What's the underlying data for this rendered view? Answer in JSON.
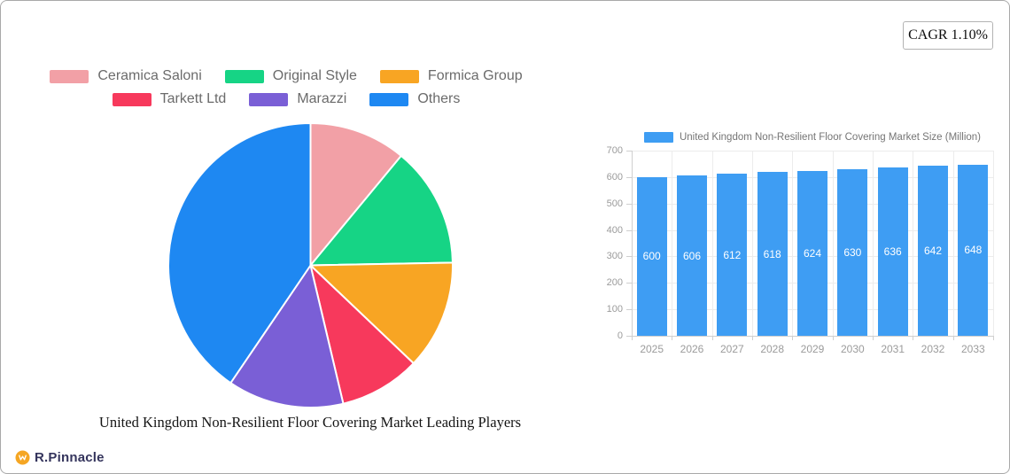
{
  "badge": {
    "label": "CAGR 1.10%"
  },
  "branding": {
    "name": "R.Pinnacle",
    "icon": "orange-circle-monogram",
    "icon_color": "#F5A623",
    "text_color": "#34345c"
  },
  "chart_data": [
    {
      "type": "pie",
      "title": "United Kingdom Non-Resilient Floor Covering Market Leading Players",
      "labels": [
        "Ceramica Saloni",
        "Original Style",
        "Formica Group",
        "Tarkett Ltd",
        "Marazzi",
        "Others"
      ],
      "values": [
        11,
        13.7,
        12.4,
        9.2,
        13.2,
        40.5
      ],
      "colors": [
        "#F2A0A6",
        "#16D485",
        "#F8A523",
        "#F7395C",
        "#7A5FD6",
        "#1E88F2"
      ],
      "legend_position": "top",
      "legend_rows": 2,
      "start_angle_deg": 0,
      "direction": "clockwise",
      "slice_border_color": "#ffffff"
    },
    {
      "type": "bar",
      "series_label": "United Kingdom Non-Resilient Floor Covering Market Size (Million)",
      "categories": [
        "2025",
        "2026",
        "2027",
        "2028",
        "2029",
        "2030",
        "2031",
        "2032",
        "2033"
      ],
      "values": [
        600,
        606,
        612,
        618,
        624,
        630,
        636,
        642,
        648
      ],
      "bar_color": "#3E9DF3",
      "value_label_color": "#ffffff",
      "ylim": [
        0,
        700
      ],
      "ytick_step": 100,
      "yticks": [
        0,
        100,
        200,
        300,
        400,
        500,
        600,
        700
      ],
      "grid": true,
      "legend_position": "top",
      "axis_label_color": "#9b9b9b"
    }
  ]
}
